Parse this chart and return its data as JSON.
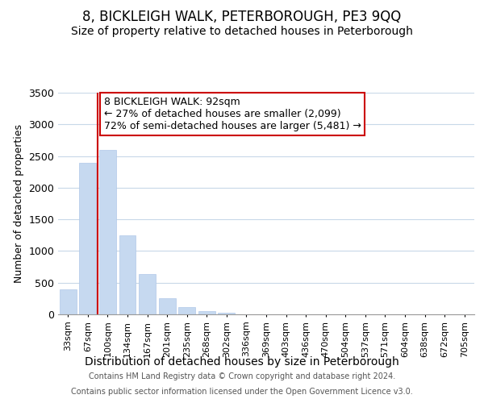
{
  "title": "8, BICKLEIGH WALK, PETERBOROUGH, PE3 9QQ",
  "subtitle": "Size of property relative to detached houses in Peterborough",
  "xlabel": "Distribution of detached houses by size in Peterborough",
  "ylabel": "Number of detached properties",
  "bar_labels": [
    "33sqm",
    "67sqm",
    "100sqm",
    "134sqm",
    "167sqm",
    "201sqm",
    "235sqm",
    "268sqm",
    "302sqm",
    "336sqm",
    "369sqm",
    "403sqm",
    "436sqm",
    "470sqm",
    "504sqm",
    "537sqm",
    "571sqm",
    "604sqm",
    "638sqm",
    "672sqm",
    "705sqm"
  ],
  "bar_values": [
    400,
    2390,
    2600,
    1250,
    640,
    260,
    110,
    55,
    30,
    0,
    0,
    0,
    0,
    0,
    0,
    0,
    0,
    0,
    0,
    0,
    0
  ],
  "bar_color": "#c6d9f0",
  "bar_edge_color": "#b0c8e8",
  "vline_color": "#cc0000",
  "vline_x_index": 2,
  "ylim": [
    0,
    3500
  ],
  "annotation_text_line1": "8 BICKLEIGH WALK: 92sqm",
  "annotation_text_line2": "← 27% of detached houses are smaller (2,099)",
  "annotation_text_line3": "72% of semi-detached houses are larger (5,481) →",
  "annotation_box_color": "#ffffff",
  "annotation_box_edge": "#cc0000",
  "footer_line1": "Contains HM Land Registry data © Crown copyright and database right 2024.",
  "footer_line2": "Contains public sector information licensed under the Open Government Licence v3.0.",
  "background_color": "#ffffff",
  "grid_color": "#c8d8e8",
  "title_fontsize": 12,
  "subtitle_fontsize": 10,
  "ylabel_fontsize": 9,
  "xlabel_fontsize": 10,
  "tick_fontsize": 8,
  "annotation_fontsize": 9,
  "footer_fontsize": 7
}
